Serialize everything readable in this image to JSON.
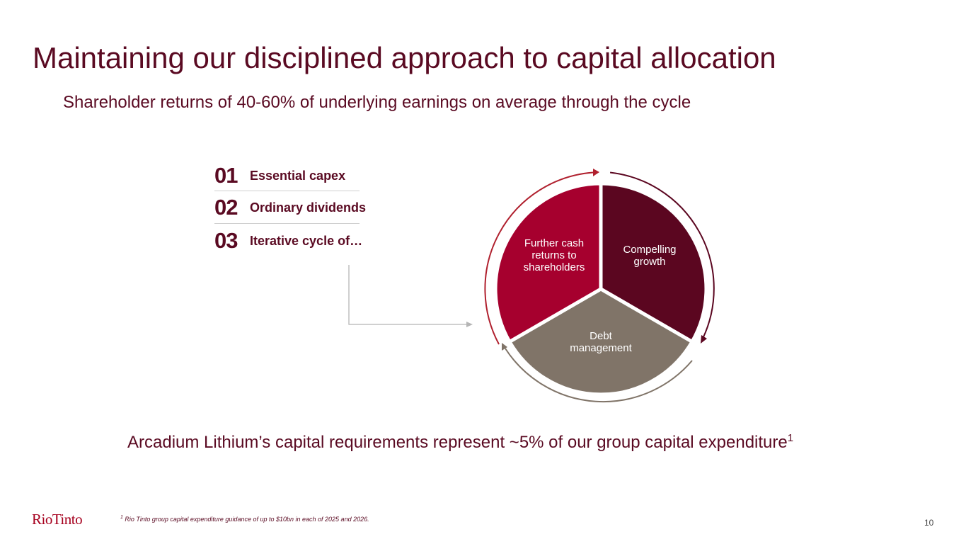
{
  "slide": {
    "title": "Maintaining our disciplined approach to capital allocation",
    "subtitle": "Shareholder returns of 40-60% of underlying earnings on average through the cycle"
  },
  "steps": [
    {
      "number": "01",
      "label": "Essential capex"
    },
    {
      "number": "02",
      "label": "Ordinary dividends"
    },
    {
      "number": "03",
      "label": "Iterative cycle of…"
    }
  ],
  "cycle": {
    "segments": [
      {
        "label": "Compelling growth",
        "color": "#5b0620"
      },
      {
        "label": "Debt management",
        "color": "#807468"
      },
      {
        "label": "Further cash returns to shareholders",
        "color": "#a6002e"
      }
    ],
    "arrow_colors": [
      "#5b0620",
      "#807468",
      "#b0202e"
    ]
  },
  "callout": {
    "text": "Arcadium Lithium’s capital requirements represent ~5% of our group capital expenditure",
    "sup": "1"
  },
  "footnote": {
    "sup": "1",
    "text": "Rio Tinto group capital expenditure guidance of up to $10bn in each of 2025 and 2026."
  },
  "brand": {
    "logo_text": "RioTinto",
    "color": "#a6001e"
  },
  "page_number": "10"
}
